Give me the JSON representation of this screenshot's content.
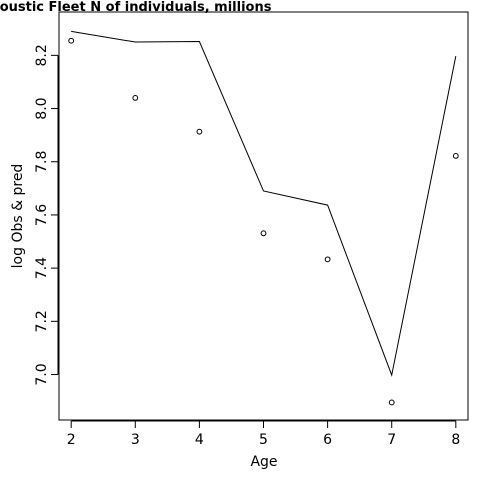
{
  "chart_data": {
    "type": "line",
    "title": "coustic Fleet   N of individuals, millions",
    "xlabel": "Age",
    "ylabel": "log Obs & pred",
    "x": [
      2,
      3,
      4,
      5,
      6,
      7,
      8
    ],
    "series": [
      {
        "style": "points",
        "values": [
          8.255,
          8.04,
          7.913,
          7.531,
          7.433,
          6.895,
          7.822
        ]
      },
      {
        "style": "line",
        "values": [
          8.29,
          8.25,
          8.252,
          7.69,
          7.637,
          6.998,
          8.197
        ]
      }
    ],
    "xlim": [
      1.81,
      8.19
    ],
    "ylim": [
      6.829,
      8.363
    ],
    "xticks": [
      "2",
      "3",
      "4",
      "5",
      "6",
      "7",
      "8"
    ],
    "yticks": [
      "7.0",
      "7.2",
      "7.4",
      "7.6",
      "7.8",
      "8.0",
      "8.2"
    ],
    "grid": false,
    "legend": "none",
    "colors": {
      "line": "#000000",
      "points": "#000000",
      "background": "#ffffff"
    }
  }
}
